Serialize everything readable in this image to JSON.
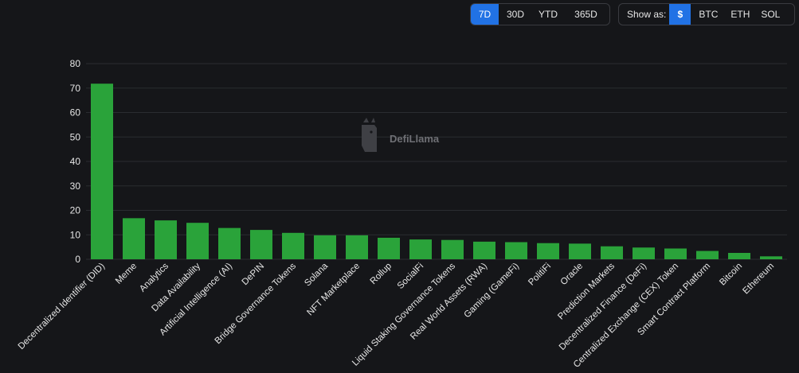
{
  "period_options": [
    "7D",
    "30D",
    "YTD",
    "365D"
  ],
  "period_selected": "7D",
  "show_as_label": "Show as:",
  "currency_options": [
    "$",
    "BTC",
    "ETH",
    "SOL"
  ],
  "currency_selected": "$",
  "watermark": "DefiLlama",
  "colors": {
    "bar": "#2aa33a",
    "accent": "#2172e5",
    "background": "#151619"
  },
  "chart_data": {
    "type": "bar",
    "title": "",
    "xlabel": "",
    "ylabel": "",
    "ylim": [
      0,
      80
    ],
    "yticks": [
      0,
      10,
      20,
      30,
      40,
      50,
      60,
      70,
      80
    ],
    "grid": true,
    "categories": [
      "Decentralized Identifier (DID)",
      "Meme",
      "Analytics",
      "Data Availability",
      "Artificial Intelligence (AI)",
      "DePIN",
      "Bridge Governance Tokens",
      "Solana",
      "NFT Marketplace",
      "Rollup",
      "SocialFi",
      "Liquid Staking Governance Tokens",
      "Real World Assets (RWA)",
      "Gaming (GameFi)",
      "PolitiFi",
      "Oracle",
      "Prediction Markets",
      "Decentralized Finance (DeFi)",
      "Centralized Exchange (CEX) Token",
      "Smart Contract Platform",
      "Bitcoin",
      "Ethereum"
    ],
    "values": [
      71.8,
      16.8,
      15.9,
      14.9,
      12.8,
      12.0,
      10.8,
      9.8,
      9.8,
      8.8,
      8.1,
      7.9,
      7.2,
      7.0,
      6.6,
      6.4,
      5.3,
      4.8,
      4.4,
      3.4,
      2.6,
      1.2
    ]
  }
}
